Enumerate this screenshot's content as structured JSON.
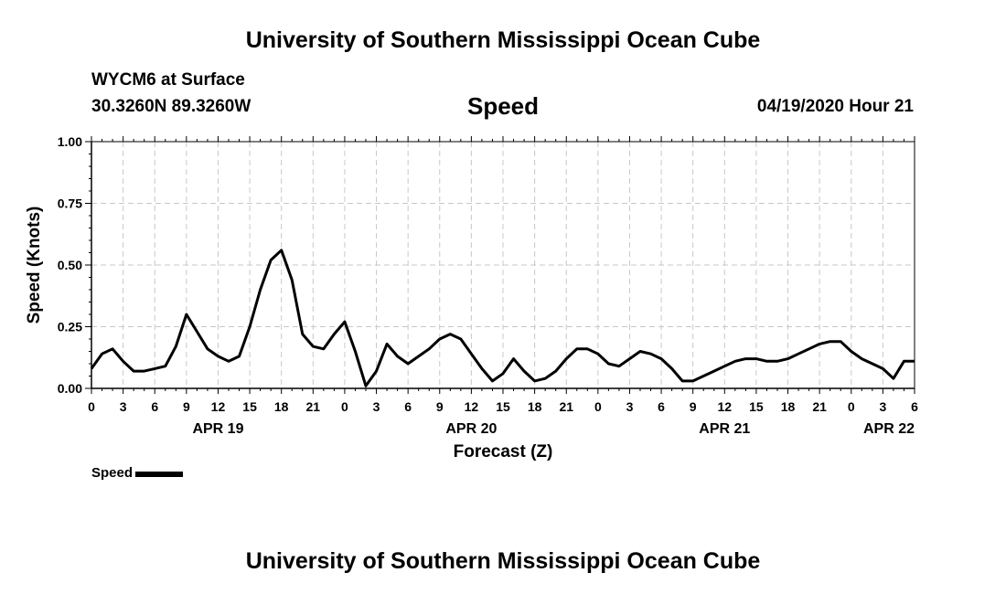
{
  "header": {
    "title": "University of Southern Mississippi Ocean Cube",
    "station": "WYCM6 at Surface",
    "coords": "30.3260N 89.3260W",
    "variable": "Speed",
    "datetime": "04/19/2020 Hour 21"
  },
  "footer": {
    "title": "University of Southern Mississippi Ocean Cube"
  },
  "chart_data": {
    "type": "line",
    "xlabel": "Forecast (Z)",
    "ylabel": "Speed (Knots)",
    "ylim": [
      0,
      1.0
    ],
    "yticks": [
      "0.00",
      "0.25",
      "0.50",
      "0.75",
      "1.00"
    ],
    "xlim_hours": [
      0,
      78
    ],
    "xtick_labels": [
      "0",
      "3",
      "6",
      "9",
      "12",
      "15",
      "18",
      "21",
      "0",
      "3",
      "6",
      "9",
      "12",
      "15",
      "18",
      "21",
      "0",
      "3",
      "6",
      "9",
      "12",
      "15",
      "18",
      "21",
      "0",
      "3",
      "6"
    ],
    "date_labels": [
      {
        "label": "APR 19",
        "hour": 12
      },
      {
        "label": "APR 20",
        "hour": 36
      },
      {
        "label": "APR 21",
        "hour": 60
      },
      {
        "label": "APR 22",
        "hour": 78
      }
    ],
    "grid": true,
    "legend": "bottom-left",
    "series": [
      {
        "name": "Speed",
        "color": "#000000",
        "x": [
          0,
          1,
          2,
          3,
          4,
          5,
          6,
          7,
          8,
          9,
          10,
          11,
          12,
          13,
          14,
          15,
          16,
          17,
          18,
          19,
          20,
          21,
          22,
          23,
          24,
          25,
          26,
          27,
          28,
          29,
          30,
          31,
          32,
          33,
          34,
          35,
          36,
          37,
          38,
          39,
          40,
          41,
          42,
          43,
          44,
          45,
          46,
          47,
          48,
          49,
          50,
          51,
          52,
          53,
          54,
          55,
          56,
          57,
          58,
          59,
          60,
          61,
          62,
          63,
          64,
          65,
          66,
          67,
          68,
          69,
          70,
          71,
          72,
          73,
          74,
          75,
          76,
          77,
          78
        ],
        "values": [
          0.08,
          0.14,
          0.16,
          0.11,
          0.07,
          0.07,
          0.08,
          0.09,
          0.17,
          0.3,
          0.23,
          0.16,
          0.13,
          0.11,
          0.13,
          0.25,
          0.4,
          0.52,
          0.56,
          0.44,
          0.22,
          0.17,
          0.16,
          0.22,
          0.27,
          0.15,
          0.01,
          0.07,
          0.18,
          0.13,
          0.1,
          0.13,
          0.16,
          0.2,
          0.22,
          0.2,
          0.14,
          0.08,
          0.03,
          0.06,
          0.12,
          0.07,
          0.03,
          0.04,
          0.07,
          0.12,
          0.16,
          0.16,
          0.14,
          0.1,
          0.09,
          0.12,
          0.15,
          0.14,
          0.12,
          0.08,
          0.03,
          0.03,
          0.05,
          0.07,
          0.09,
          0.11,
          0.12,
          0.12,
          0.11,
          0.11,
          0.12,
          0.14,
          0.16,
          0.18,
          0.19,
          0.19,
          0.15,
          0.12,
          0.1,
          0.08,
          0.04,
          0.11,
          0.11
        ]
      }
    ]
  }
}
